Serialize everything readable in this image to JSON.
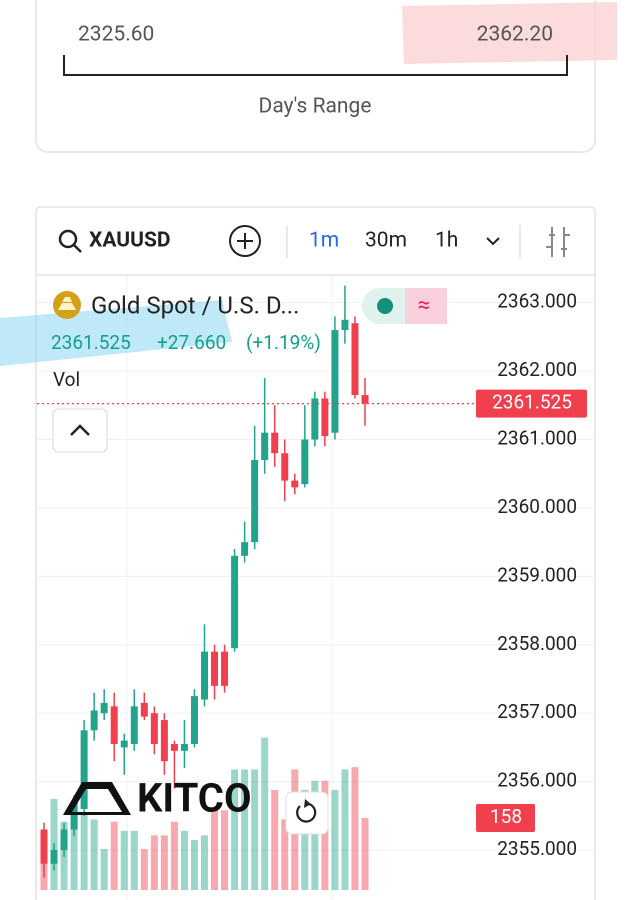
{
  "day_range": {
    "low": "2325.60",
    "high": "2362.20",
    "label": "Day's Range"
  },
  "toolbar": {
    "symbol": "XAUUSD",
    "intervals": [
      "1m",
      "30m",
      "1h"
    ]
  },
  "legend": {
    "name": "Gold Spot / U.S. D...",
    "price": "2361.525",
    "change": "+27.660",
    "change_pct": "(+1.19%)",
    "vol_label": "Vol"
  },
  "brand": "KITCO",
  "chart_data": {
    "type": "candlestick",
    "ylim": [
      2354.27,
      2363.39
    ],
    "yticks": [
      {
        "value": 2355,
        "label": "2355.000"
      },
      {
        "value": 2356,
        "label": "2356.000"
      },
      {
        "value": 2357,
        "label": "2357.000"
      },
      {
        "value": 2358,
        "label": "2358.000"
      },
      {
        "value": 2359,
        "label": "2359.000"
      },
      {
        "value": 2360,
        "label": "2360.000"
      },
      {
        "value": 2361,
        "label": "2361.000"
      },
      {
        "value": 2362,
        "label": "2362.000"
      },
      {
        "value": 2363,
        "label": "2363.000"
      }
    ],
    "current_price": 2361.525,
    "up_color": "#22a38b",
    "down_color": "#f0404d",
    "open": [
      2355.3,
      2354.8,
      2355.0,
      2355.3,
      2355.6,
      2356.75,
      2357.0,
      2357.1,
      2356.5,
      2356.55,
      2357.15,
      2357.0,
      2356.9,
      2356.55,
      2356.45,
      2356.55,
      2357.2,
      2357.9,
      2357.9,
      2357.95,
      2359.3,
      2359.5,
      2360.7,
      2361.1,
      2360.8,
      2360.4,
      2360.35,
      2361.0,
      2361.6,
      2361.1,
      2362.6,
      2362.7,
      2361.65
    ],
    "high": [
      2355.4,
      2355.1,
      2355.4,
      2355.8,
      2356.9,
      2357.3,
      2357.35,
      2357.3,
      2356.7,
      2357.35,
      2357.3,
      2357.1,
      2357.0,
      2356.6,
      2356.9,
      2357.35,
      2358.3,
      2358.0,
      2358.0,
      2359.4,
      2359.8,
      2361.2,
      2361.9,
      2361.5,
      2361.0,
      2360.5,
      2361.5,
      2361.7,
      2361.7,
      2362.8,
      2363.25,
      2362.8,
      2361.9
    ],
    "low": [
      2354.6,
      2354.7,
      2354.9,
      2355.2,
      2355.5,
      2356.6,
      2356.9,
      2356.3,
      2356.1,
      2356.45,
      2356.9,
      2356.4,
      2356.1,
      2355.9,
      2356.2,
      2356.5,
      2357.1,
      2357.2,
      2357.3,
      2357.9,
      2359.2,
      2359.4,
      2360.5,
      2360.6,
      2360.1,
      2360.2,
      2360.3,
      2360.9,
      2360.9,
      2361.0,
      2362.4,
      2361.6,
      2361.2
    ],
    "close": [
      2354.8,
      2355.0,
      2355.3,
      2355.7,
      2356.75,
      2357.04,
      2357.15,
      2356.55,
      2356.6,
      2357.1,
      2356.95,
      2356.55,
      2356.3,
      2356.45,
      2356.55,
      2357.25,
      2357.9,
      2357.4,
      2357.4,
      2359.3,
      2359.5,
      2360.7,
      2361.1,
      2360.8,
      2360.4,
      2360.3,
      2361.0,
      2361.6,
      2361.05,
      2362.6,
      2362.75,
      2361.65,
      2361.525
    ],
    "volume": {
      "ylim": [
        0,
        400
      ],
      "values": [
        130,
        200,
        150,
        165,
        165,
        155,
        90,
        150,
        130,
        130,
        90,
        120,
        120,
        150,
        130,
        110,
        120,
        175,
        175,
        265,
        265,
        265,
        335,
        220,
        155,
        265,
        220,
        240,
        240,
        220,
        265,
        270,
        158
      ]
    }
  }
}
